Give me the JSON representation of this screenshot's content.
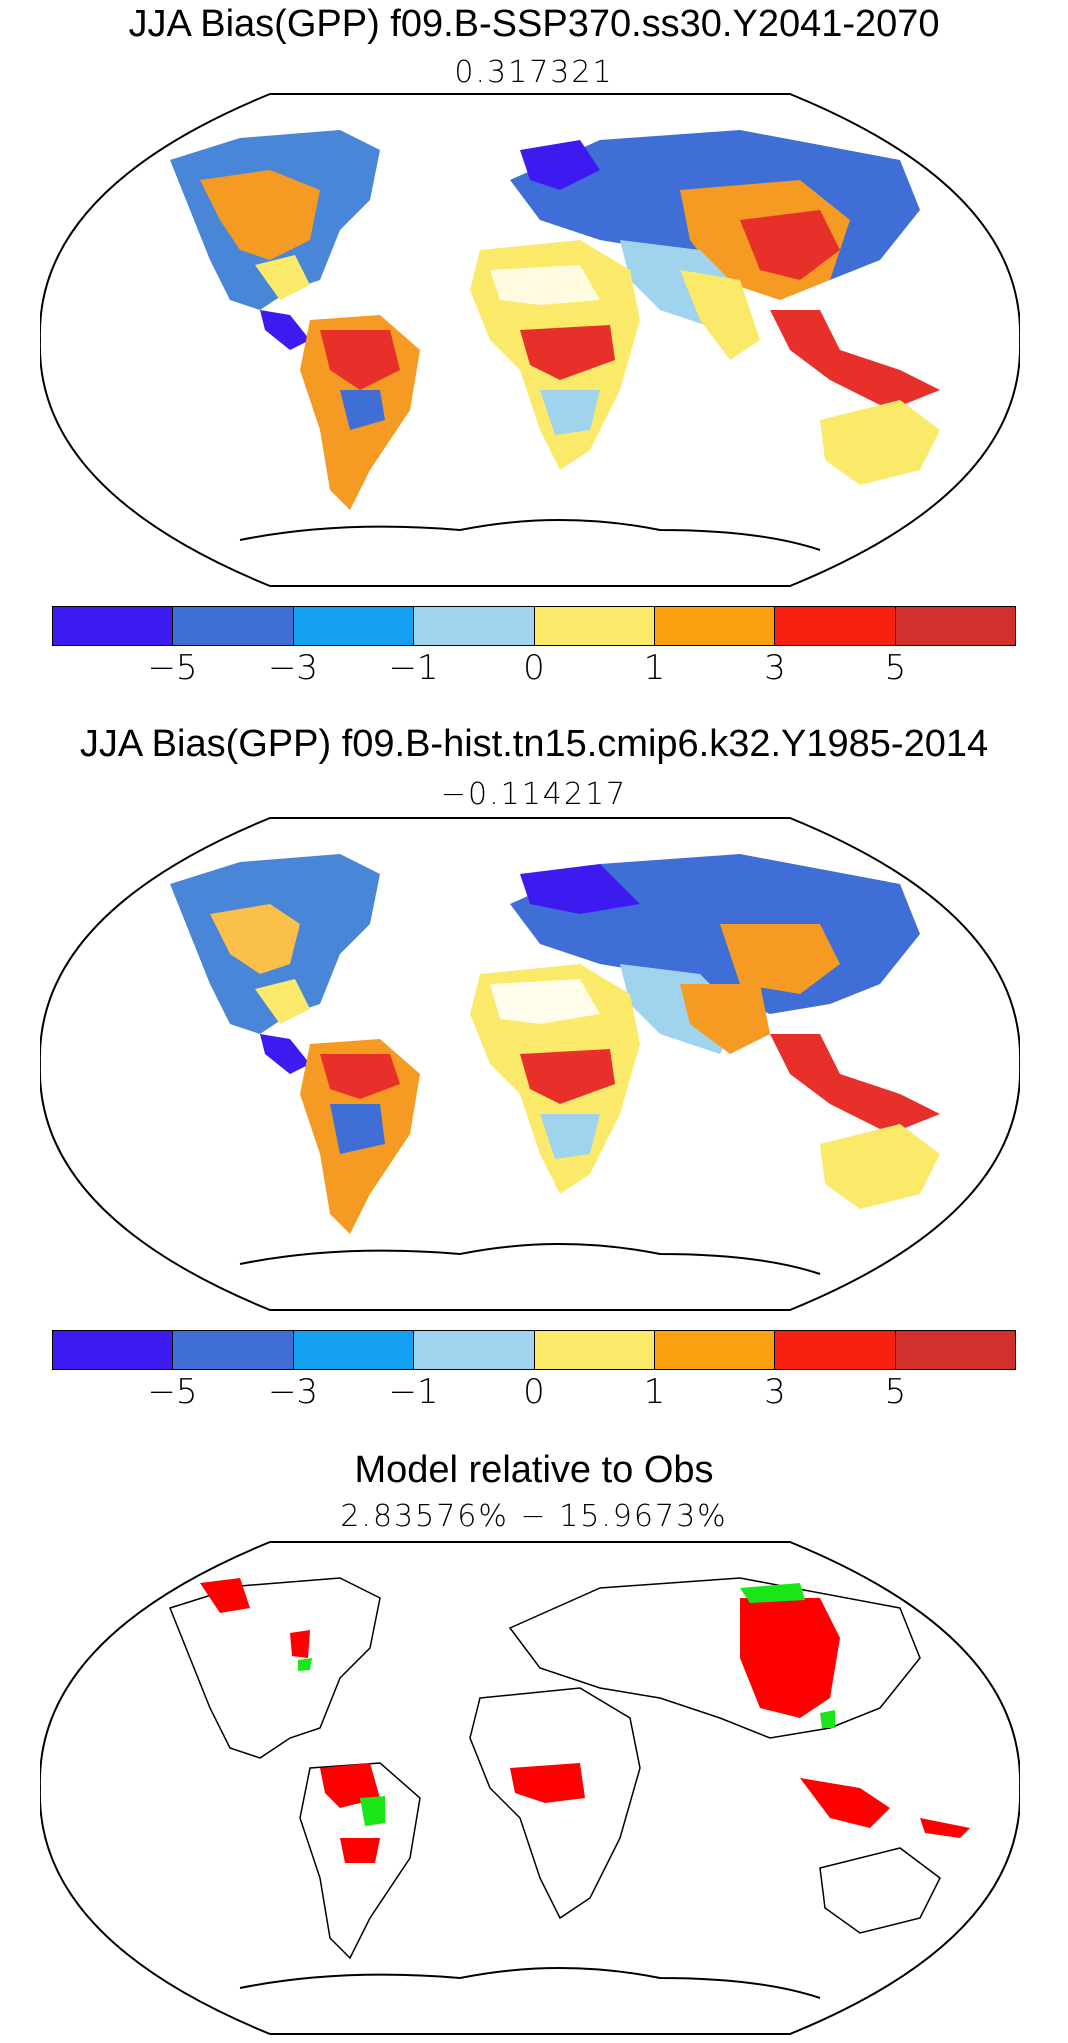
{
  "panels": [
    {
      "title": "JJA Bias(GPP) f09.B-SSP370.ss30.Y2041-2070",
      "value": "0.317321"
    },
    {
      "title": "JJA Bias(GPP) f09.B-hist.tn15.cmip6.k32.Y1985-2014",
      "value": "−0.114217"
    },
    {
      "title": "Model relative to Obs",
      "value": "2.83576% − 15.9673%"
    }
  ],
  "colorbar": {
    "colors": [
      "#3d1af0",
      "#3f6ed6",
      "#13a0f0",
      "#9fd3ee",
      "#fbea6a",
      "#fba00f",
      "#f82010",
      "#d2302c"
    ],
    "ticks": [
      "−5",
      "−3",
      "−1",
      "0",
      "1",
      "3",
      "5"
    ]
  },
  "mask_colors": {
    "worse": "#ff0000",
    "better": "#19e619"
  }
}
